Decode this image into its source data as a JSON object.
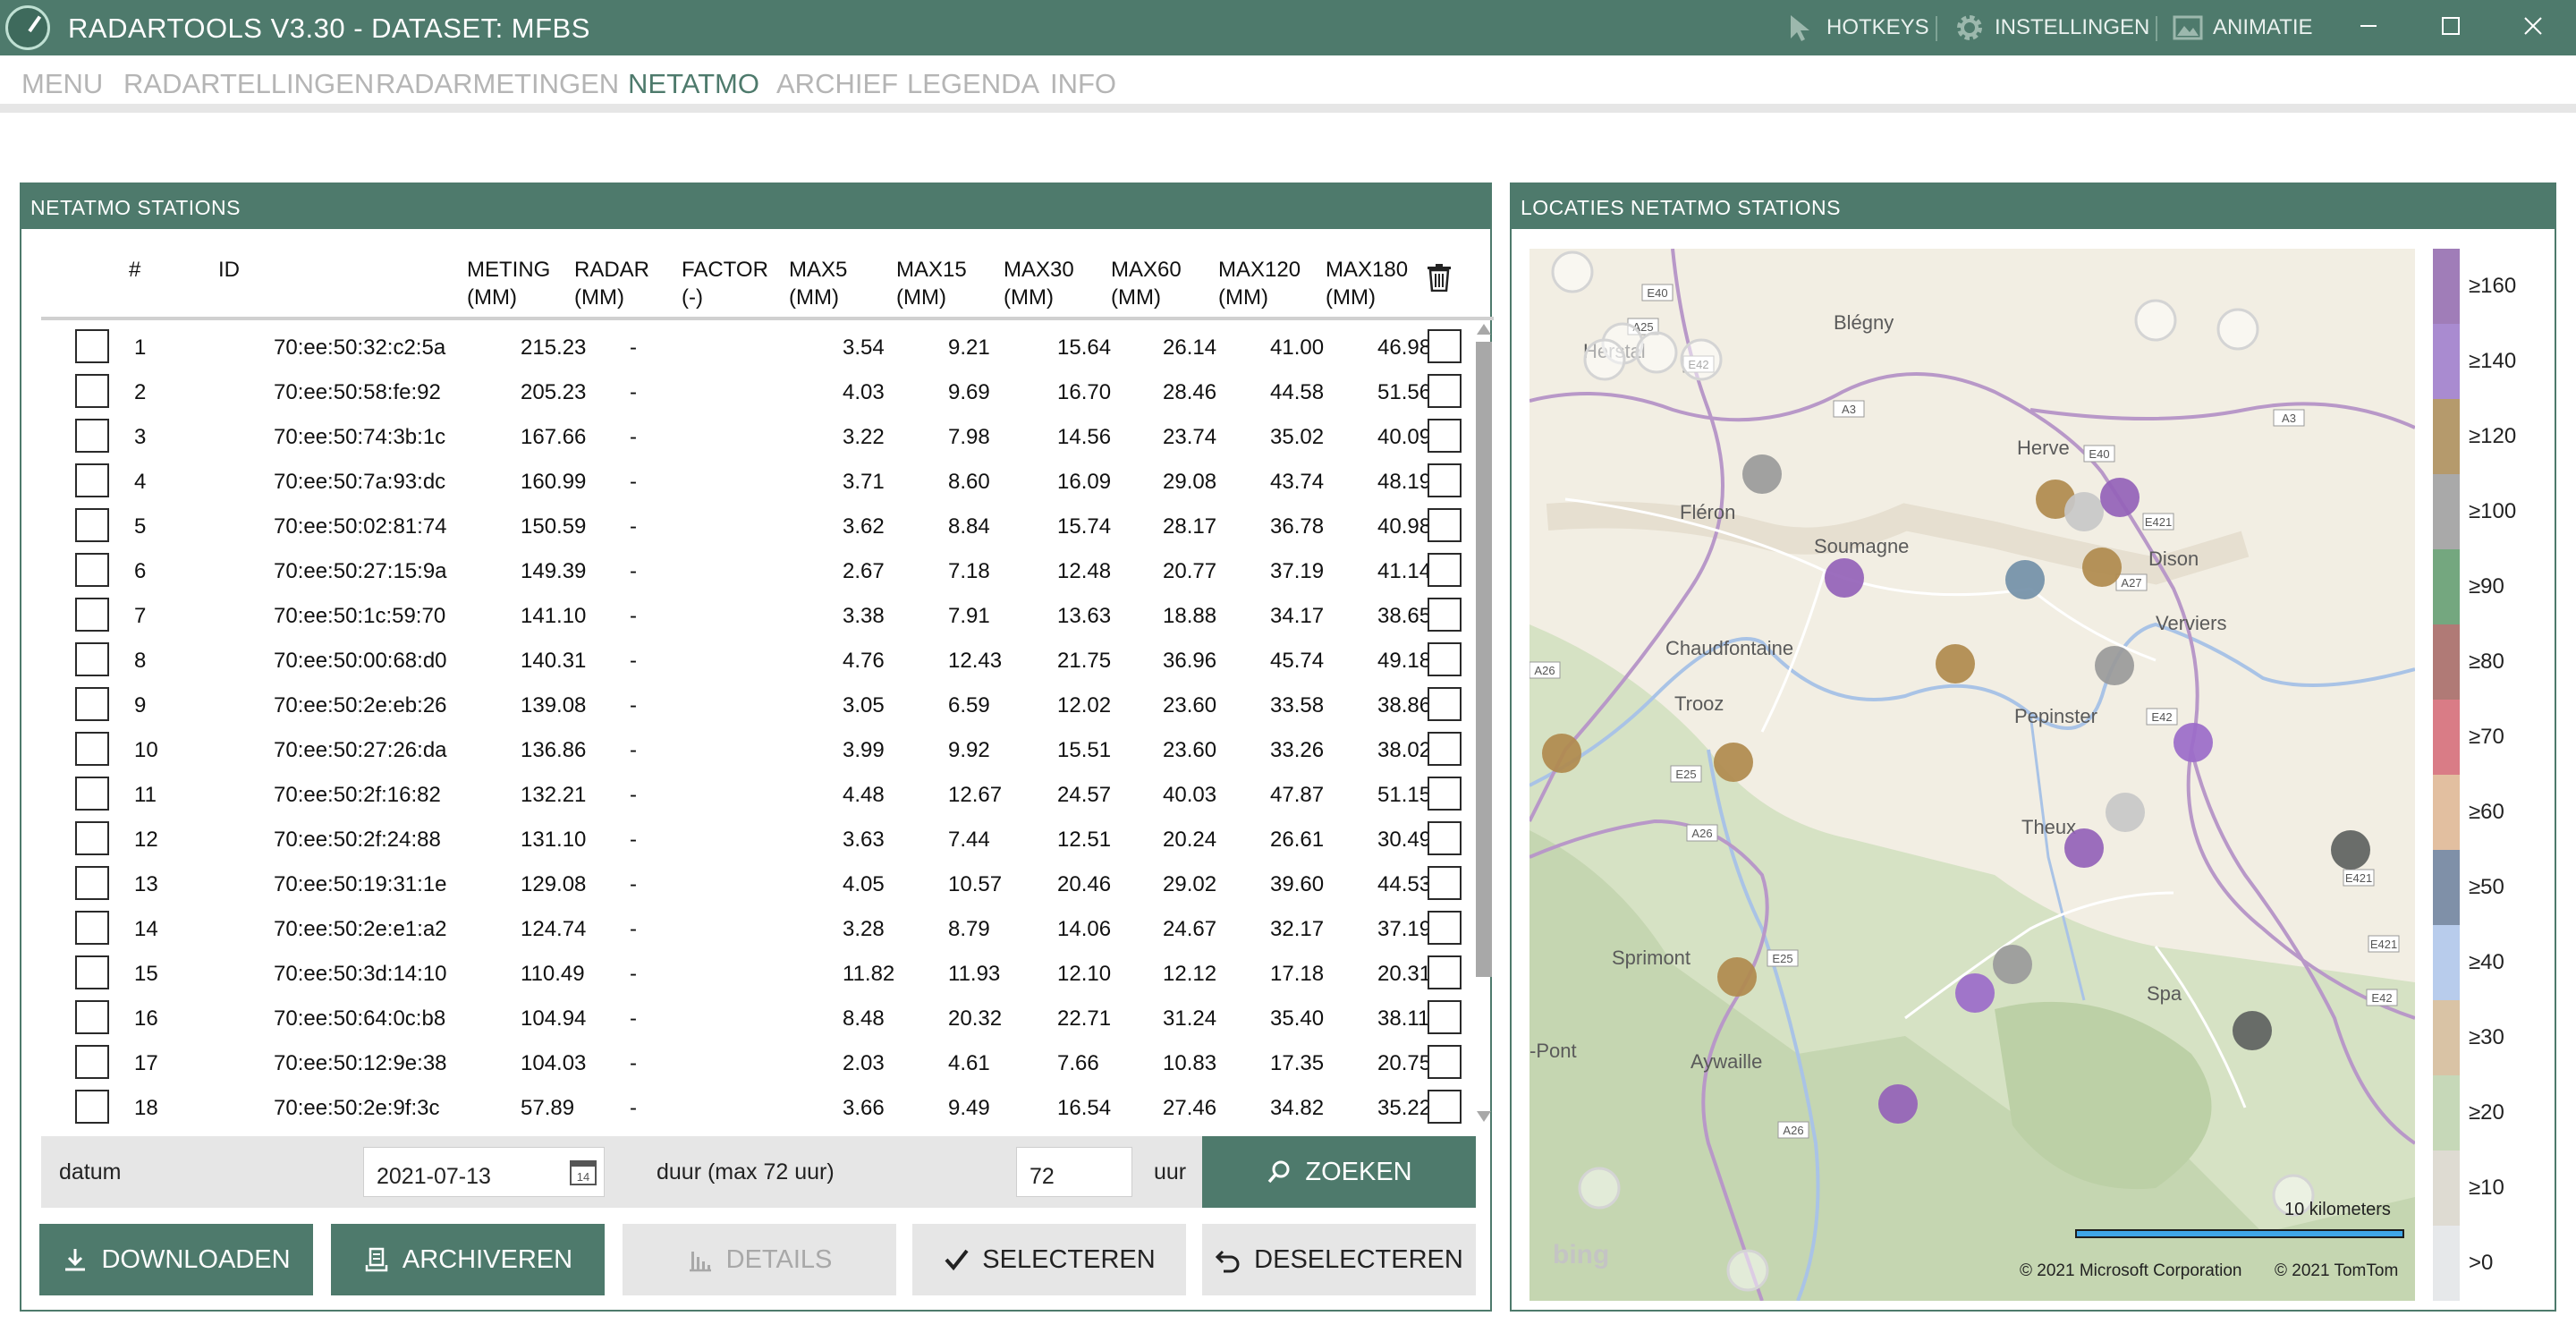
{
  "window": {
    "title": "RADARTOOLS V3.30 - DATASET: MFBS",
    "actions": [
      "HOTKEYS",
      "INSTELLINGEN",
      "ANIMATIE"
    ],
    "controls": [
      "minimize",
      "maximize",
      "close"
    ]
  },
  "menu": [
    {
      "label": "MENU",
      "active": false
    },
    {
      "label": "RADARTELLINGEN",
      "active": false
    },
    {
      "label": "RADARMETINGEN",
      "active": false
    },
    {
      "label": "NETATMO",
      "active": true
    },
    {
      "label": "ARCHIEF",
      "active": false
    },
    {
      "label": "LEGENDA",
      "active": false
    },
    {
      "label": "INFO",
      "active": false
    }
  ],
  "stations_panel": {
    "title": "NETATMO STATIONS",
    "columns": [
      {
        "key": "num",
        "l1": "#",
        "l2": ""
      },
      {
        "key": "id",
        "l1": "ID",
        "l2": ""
      },
      {
        "key": "meting",
        "l1": "METING",
        "l2": "(MM)"
      },
      {
        "key": "radar",
        "l1": "RADAR",
        "l2": "(MM)"
      },
      {
        "key": "factor",
        "l1": "FACTOR",
        "l2": "(-)"
      },
      {
        "key": "max5",
        "l1": "MAX5",
        "l2": "(MM)"
      },
      {
        "key": "max15",
        "l1": "MAX15",
        "l2": "(MM)"
      },
      {
        "key": "max30",
        "l1": "MAX30",
        "l2": "(MM)"
      },
      {
        "key": "max60",
        "l1": "MAX60",
        "l2": "(MM)"
      },
      {
        "key": "max120",
        "l1": "MAX120",
        "l2": "(MM)"
      },
      {
        "key": "max180",
        "l1": "MAX180",
        "l2": "(MM)"
      }
    ],
    "rows": [
      {
        "num": "1",
        "id": "70:ee:50:32:c2:5a",
        "meting": "215.23",
        "radar": "-",
        "factor": "",
        "max5": "3.54",
        "max15": "9.21",
        "max30": "15.64",
        "max60": "26.14",
        "max120": "41.00",
        "max180": "46.98"
      },
      {
        "num": "2",
        "id": "70:ee:50:58:fe:92",
        "meting": "205.23",
        "radar": "-",
        "factor": "",
        "max5": "4.03",
        "max15": "9.69",
        "max30": "16.70",
        "max60": "28.46",
        "max120": "44.58",
        "max180": "51.56"
      },
      {
        "num": "3",
        "id": "70:ee:50:74:3b:1c",
        "meting": "167.66",
        "radar": "-",
        "factor": "",
        "max5": "3.22",
        "max15": "7.98",
        "max30": "14.56",
        "max60": "23.74",
        "max120": "35.02",
        "max180": "40.09"
      },
      {
        "num": "4",
        "id": "70:ee:50:7a:93:dc",
        "meting": "160.99",
        "radar": "-",
        "factor": "",
        "max5": "3.71",
        "max15": "8.60",
        "max30": "16.09",
        "max60": "29.08",
        "max120": "43.74",
        "max180": "48.19"
      },
      {
        "num": "5",
        "id": "70:ee:50:02:81:74",
        "meting": "150.59",
        "radar": "-",
        "factor": "",
        "max5": "3.62",
        "max15": "8.84",
        "max30": "15.74",
        "max60": "28.17",
        "max120": "36.78",
        "max180": "40.98"
      },
      {
        "num": "6",
        "id": "70:ee:50:27:15:9a",
        "meting": "149.39",
        "radar": "-",
        "factor": "",
        "max5": "2.67",
        "max15": "7.18",
        "max30": "12.48",
        "max60": "20.77",
        "max120": "37.19",
        "max180": "41.14"
      },
      {
        "num": "7",
        "id": "70:ee:50:1c:59:70",
        "meting": "141.10",
        "radar": "-",
        "factor": "",
        "max5": "3.38",
        "max15": "7.91",
        "max30": "13.63",
        "max60": "18.88",
        "max120": "34.17",
        "max180": "38.65"
      },
      {
        "num": "8",
        "id": "70:ee:50:00:68:d0",
        "meting": "140.31",
        "radar": "-",
        "factor": "",
        "max5": "4.76",
        "max15": "12.43",
        "max30": "21.75",
        "max60": "36.96",
        "max120": "45.74",
        "max180": "49.18"
      },
      {
        "num": "9",
        "id": "70:ee:50:2e:eb:26",
        "meting": "139.08",
        "radar": "-",
        "factor": "",
        "max5": "3.05",
        "max15": "6.59",
        "max30": "12.02",
        "max60": "23.60",
        "max120": "33.58",
        "max180": "38.86"
      },
      {
        "num": "10",
        "id": "70:ee:50:27:26:da",
        "meting": "136.86",
        "radar": "-",
        "factor": "",
        "max5": "3.99",
        "max15": "9.92",
        "max30": "15.51",
        "max60": "23.60",
        "max120": "33.26",
        "max180": "38.02"
      },
      {
        "num": "11",
        "id": "70:ee:50:2f:16:82",
        "meting": "132.21",
        "radar": "-",
        "factor": "",
        "max5": "4.48",
        "max15": "12.67",
        "max30": "24.57",
        "max60": "40.03",
        "max120": "47.87",
        "max180": "51.15"
      },
      {
        "num": "12",
        "id": "70:ee:50:2f:24:88",
        "meting": "131.10",
        "radar": "-",
        "factor": "",
        "max5": "3.63",
        "max15": "7.44",
        "max30": "12.51",
        "max60": "20.24",
        "max120": "26.61",
        "max180": "30.49"
      },
      {
        "num": "13",
        "id": "70:ee:50:19:31:1e",
        "meting": "129.08",
        "radar": "-",
        "factor": "",
        "max5": "4.05",
        "max15": "10.57",
        "max30": "20.46",
        "max60": "29.02",
        "max120": "39.60",
        "max180": "44.53"
      },
      {
        "num": "14",
        "id": "70:ee:50:2e:e1:a2",
        "meting": "124.74",
        "radar": "-",
        "factor": "",
        "max5": "3.28",
        "max15": "8.79",
        "max30": "14.06",
        "max60": "24.67",
        "max120": "32.17",
        "max180": "37.19"
      },
      {
        "num": "15",
        "id": "70:ee:50:3d:14:10",
        "meting": "110.49",
        "radar": "-",
        "factor": "",
        "max5": "11.82",
        "max15": "11.93",
        "max30": "12.10",
        "max60": "12.12",
        "max120": "17.18",
        "max180": "20.31"
      },
      {
        "num": "16",
        "id": "70:ee:50:64:0c:b8",
        "meting": "104.94",
        "radar": "-",
        "factor": "",
        "max5": "8.48",
        "max15": "20.32",
        "max30": "22.71",
        "max60": "31.24",
        "max120": "35.40",
        "max180": "38.11"
      },
      {
        "num": "17",
        "id": "70:ee:50:12:9e:38",
        "meting": "104.03",
        "radar": "-",
        "factor": "",
        "max5": "2.03",
        "max15": "4.61",
        "max30": "7.66",
        "max60": "10.83",
        "max120": "17.35",
        "max180": "20.75"
      },
      {
        "num": "18",
        "id": "70:ee:50:2e:9f:3c",
        "meting": "57.89",
        "radar": "-",
        "factor": "",
        "max5": "3.66",
        "max15": "9.49",
        "max30": "16.54",
        "max60": "27.46",
        "max120": "34.82",
        "max180": "35.22"
      }
    ],
    "search": {
      "datum_label": "datum",
      "datum_value": "2021-07-13",
      "duur_label": "duur (max 72 uur)",
      "duur_value": "72",
      "unit_label": "uur",
      "search_button": "ZOEKEN"
    },
    "buttons": {
      "download": "DOWNLOADEN",
      "archive": "ARCHIVEREN",
      "details": "DETAILS",
      "select": "SELECTEREN",
      "deselect": "DESELECTEREN"
    }
  },
  "map_panel": {
    "title": "LOCATIES NETATMO STATIONS",
    "places": [
      "Blégny",
      "Herstal",
      "Herve",
      "Fléron",
      "Soumagne",
      "Dison",
      "Verviers",
      "Chaudfontaine",
      "Trooz",
      "Pepinster",
      "Theux",
      "Sprimont",
      "Spa",
      "Aywaille",
      "-Pont"
    ],
    "roads": [
      "E40",
      "A25",
      "E42",
      "A3",
      "A3",
      "E40",
      "E421",
      "A27",
      "A26",
      "E25",
      "A26",
      "E42",
      "E421",
      "E25",
      "A26",
      "E421",
      "E42"
    ],
    "scale_label": "10 kilometers",
    "attribution_ms": "© 2021 Microsoft Corporation",
    "attribution_tt": "© 2021 TomTom",
    "logo_text": "bing",
    "legend": [
      {
        "label": "≥160",
        "color": "#a07db8"
      },
      {
        "label": "≥140",
        "color": "#a98bd0"
      },
      {
        "label": "≥120",
        "color": "#b59a6c"
      },
      {
        "label": "≥100",
        "color": "#a9a9a9"
      },
      {
        "label": "≥90",
        "color": "#74a77f"
      },
      {
        "label": "≥80",
        "color": "#b07a76"
      },
      {
        "label": "≥70",
        "color": "#d97c86"
      },
      {
        "label": "≥60",
        "color": "#e2bfa0"
      },
      {
        "label": "≥50",
        "color": "#7f90a8"
      },
      {
        "label": "≥40",
        "color": "#b8ccec"
      },
      {
        "label": "≥30",
        "color": "#d9c3a5"
      },
      {
        "label": "≥20",
        "color": "#c6d8b8"
      },
      {
        "label": "≥10",
        "color": "#dedbd2"
      },
      {
        "label": ">0",
        "color": "#e6e8ea"
      }
    ],
    "station_colors": {
      "purple": "#9462b8",
      "purple2": "#9b6bc9",
      "brown": "#b08a4d",
      "grey": "#9a9a9a",
      "lightgrey": "#c8c8c8",
      "dark": "#5e6260",
      "blue": "#7390a8",
      "empty": "#d4d4d4"
    }
  },
  "colors": {
    "accent": "#4e7a6c",
    "muted_menu": "#b5b5b5",
    "panel_bg": "#e6e6e6"
  }
}
